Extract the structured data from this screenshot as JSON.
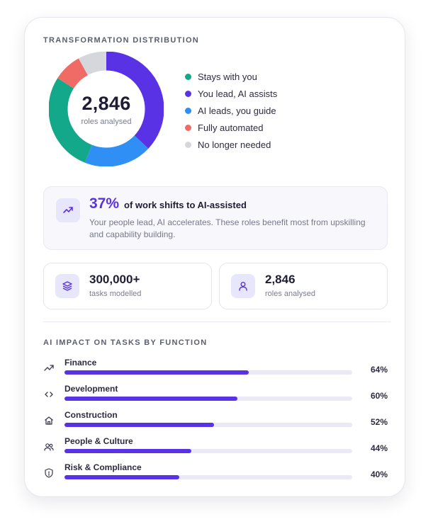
{
  "distribution": {
    "title": "TRANSFORMATION DISTRIBUTION",
    "center_value": "2,846",
    "center_caption": "roles analysed",
    "legend": [
      {
        "label": "Stays with you",
        "color": "#13a88a"
      },
      {
        "label": "You lead, AI assists",
        "color": "#5a32e6"
      },
      {
        "label": "AI leads, you guide",
        "color": "#2f8ff5"
      },
      {
        "label": "Fully automated",
        "color": "#f06b66"
      },
      {
        "label": "No longer needed",
        "color": "#d5d7dc"
      }
    ]
  },
  "chart_data": {
    "type": "pie",
    "categories": [
      "You lead, AI assists",
      "AI leads, you guide",
      "Stays with you",
      "Fully automated",
      "No longer needed"
    ],
    "values": [
      37,
      19,
      28,
      8,
      8
    ],
    "colors": [
      "#5a32e6",
      "#2f8ff5",
      "#13a88a",
      "#f06b66",
      "#d5d7dc"
    ],
    "title": ""
  },
  "insight": {
    "percent": "37%",
    "heading": "of work shifts to AI-assisted",
    "body": "Your people lead, AI accelerates. These roles benefit most from upskilling and capability building.",
    "icon": "trending-up-icon"
  },
  "stats": [
    {
      "value": "300,000+",
      "caption": "tasks modelled",
      "icon": "layers-icon"
    },
    {
      "value": "2,846",
      "caption": "roles analysed",
      "icon": "user-icon"
    }
  ],
  "impact": {
    "title": "AI IMPACT ON TASKS BY FUNCTION",
    "rows": [
      {
        "label": "Finance",
        "percent": "64%",
        "value": 0.64,
        "icon": "trending-up-icon"
      },
      {
        "label": "Development",
        "percent": "60%",
        "value": 0.6,
        "icon": "code-icon"
      },
      {
        "label": "Construction",
        "percent": "52%",
        "value": 0.52,
        "icon": "home-icon"
      },
      {
        "label": "People & Culture",
        "percent": "44%",
        "value": 0.44,
        "icon": "users-icon"
      },
      {
        "label": "Risk & Compliance",
        "percent": "40%",
        "value": 0.4,
        "icon": "shield-icon"
      }
    ]
  }
}
